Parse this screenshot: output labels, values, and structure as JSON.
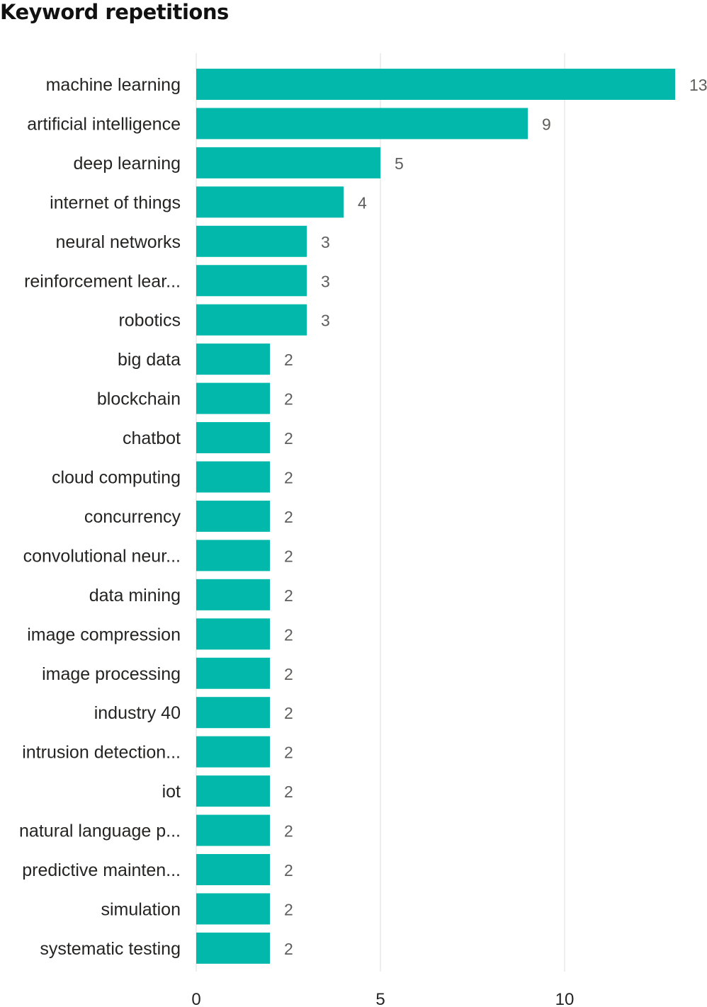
{
  "chart_data": {
    "type": "bar",
    "orientation": "horizontal",
    "title": "Keyword repetitions",
    "categories": [
      "machine learning",
      "artificial intelligence",
      "deep learning",
      "internet of things",
      "neural networks",
      "reinforcement lear...",
      "robotics",
      "big data",
      "blockchain",
      "chatbot",
      "cloud computing",
      "concurrency",
      "convolutional neur...",
      "data mining",
      "image compression",
      "image processing",
      "industry 40",
      "intrusion detection...",
      "iot",
      "natural language p...",
      "predictive mainten...",
      "simulation",
      "systematic testing"
    ],
    "values": [
      13,
      9,
      5,
      4,
      3,
      3,
      3,
      2,
      2,
      2,
      2,
      2,
      2,
      2,
      2,
      2,
      2,
      2,
      2,
      2,
      2,
      2,
      2
    ],
    "xticks": [
      0,
      5,
      10
    ],
    "xlim": [
      0,
      13
    ],
    "grid": true,
    "data_labels": true,
    "bar_color": "#01B8AA",
    "gridline_color": "#E8E8E8"
  }
}
